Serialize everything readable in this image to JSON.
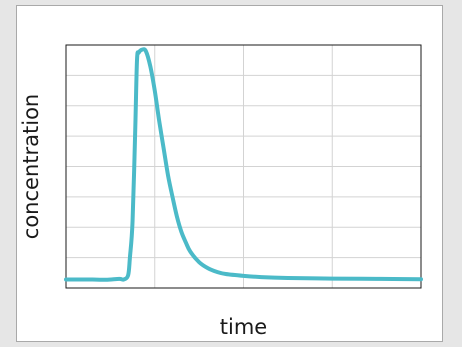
{
  "chart_data": {
    "type": "line",
    "title": "",
    "xlabel": "time",
    "ylabel": "concentration",
    "grid": true,
    "x_ticks_labeled": false,
    "y_ticks_labeled": false,
    "xlim": [
      0,
      4
    ],
    "ylim": [
      0,
      8
    ],
    "x_gridlines": [
      1,
      2,
      3
    ],
    "y_gridlines": [
      1,
      2,
      3,
      4,
      5,
      6,
      7
    ],
    "series": [
      {
        "color": "#4bbac8",
        "x": [
          0,
          0.3,
          0.45,
          0.6,
          0.65,
          0.7,
          0.72,
          0.75,
          0.78,
          0.8,
          0.82,
          0.86,
          0.9,
          0.95,
          1.0,
          1.05,
          1.1,
          1.15,
          1.2,
          1.25,
          1.3,
          1.35,
          1.4,
          1.5,
          1.6,
          1.7,
          1.8,
          2.0,
          2.2,
          2.5,
          3.0,
          3.5,
          4.0
        ],
        "y": [
          0.28,
          0.28,
          0.27,
          0.3,
          0.28,
          0.42,
          1.0,
          2.2,
          5.2,
          7.5,
          7.75,
          7.85,
          7.8,
          7.3,
          6.5,
          5.5,
          4.6,
          3.7,
          3.0,
          2.35,
          1.85,
          1.5,
          1.2,
          0.85,
          0.65,
          0.53,
          0.46,
          0.4,
          0.36,
          0.33,
          0.31,
          0.3,
          0.29
        ]
      }
    ]
  }
}
